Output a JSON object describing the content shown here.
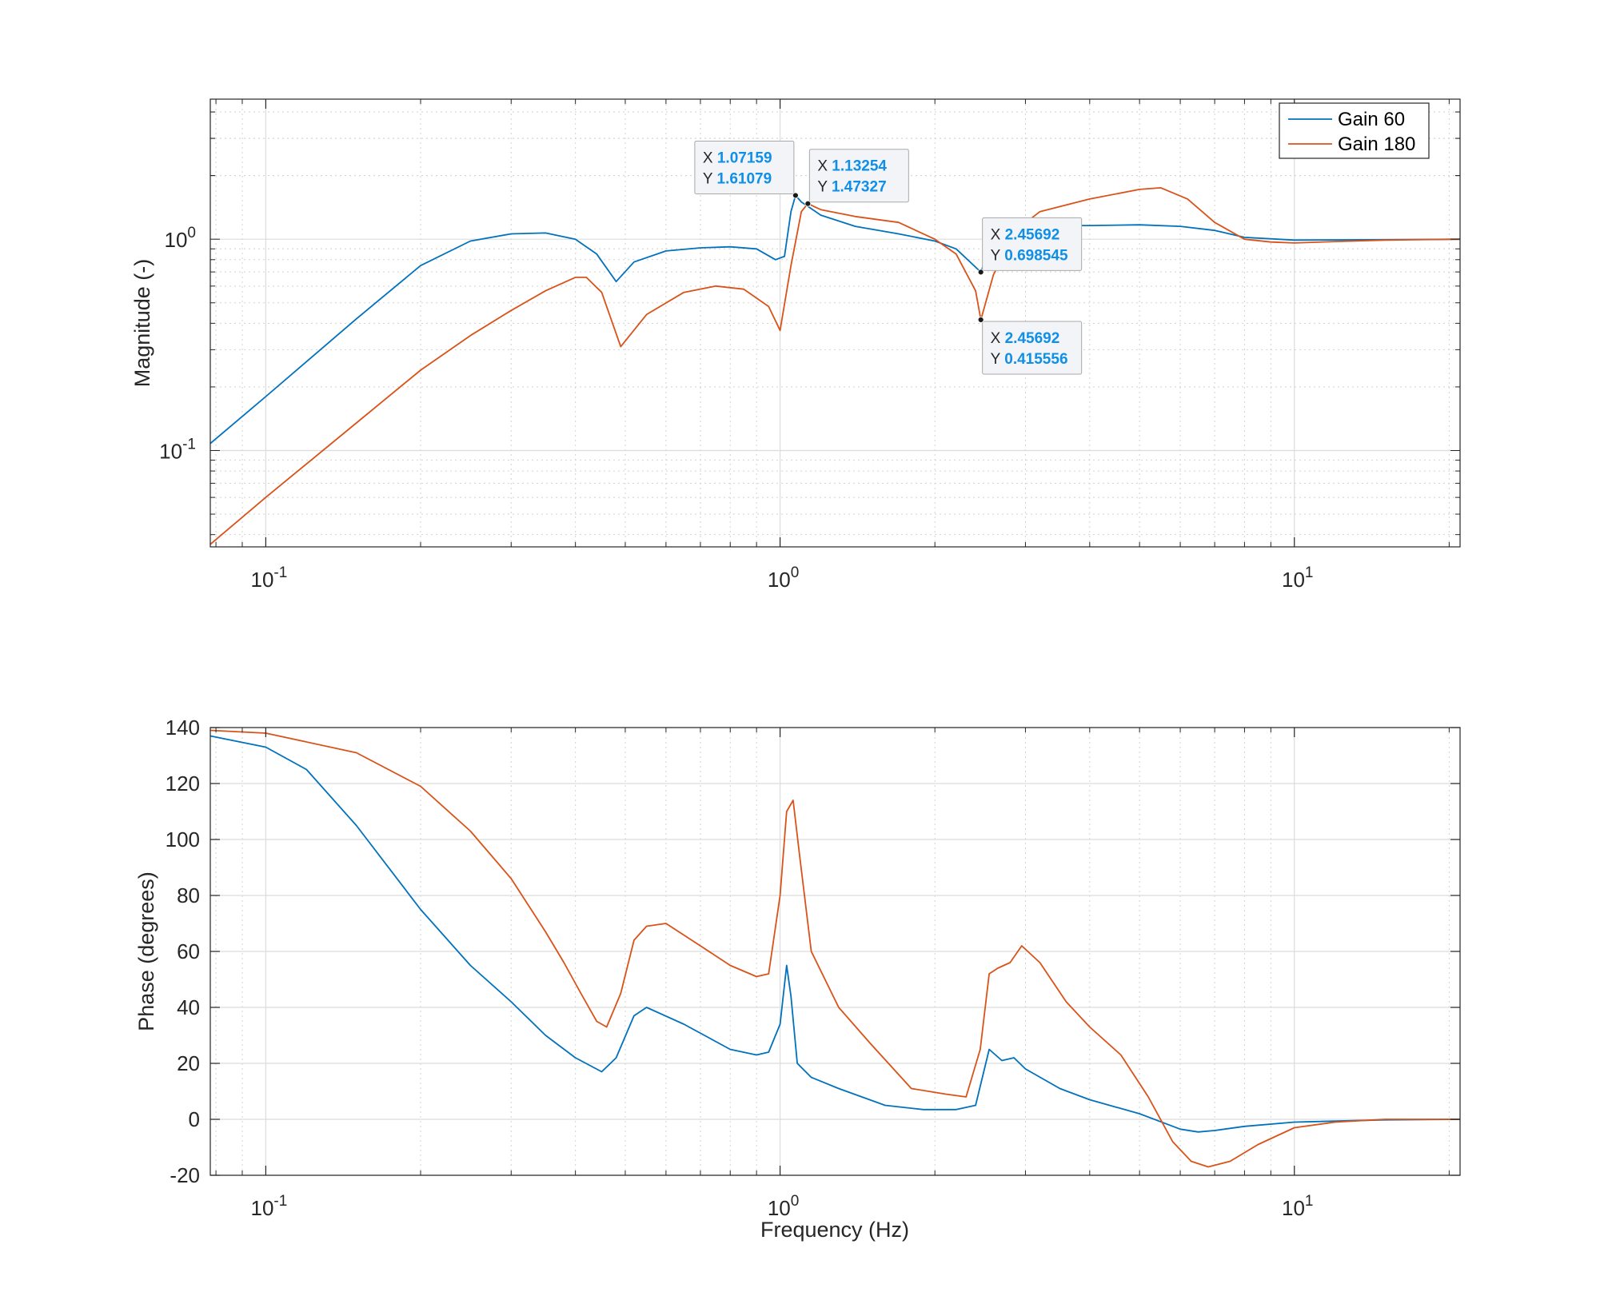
{
  "chart_data": [
    {
      "type": "line",
      "panel": "magnitude",
      "ylabel": "Magnitude (-)",
      "xlabel": "",
      "xscale": "log",
      "yscale": "log",
      "xlim": [
        0.078,
        21
      ],
      "ylim": [
        0.035,
        4.6
      ],
      "grid": true,
      "legend_position": "top-right",
      "x_tick_labels": [
        {
          "value": 0.1,
          "base": "10",
          "exp": "-1"
        },
        {
          "value": 1,
          "base": "10",
          "exp": "0"
        },
        {
          "value": 10,
          "base": "10",
          "exp": "1"
        }
      ],
      "y_tick_labels": [
        {
          "value": 0.1,
          "base": "10",
          "exp": "-1"
        },
        {
          "value": 1,
          "base": "10",
          "exp": "0"
        }
      ],
      "series": [
        {
          "name": "Gain 60",
          "color": "#0072bd",
          "x": [
            0.078,
            0.1,
            0.15,
            0.2,
            0.25,
            0.3,
            0.35,
            0.4,
            0.44,
            0.48,
            0.52,
            0.6,
            0.7,
            0.8,
            0.9,
            0.98,
            1.02,
            1.05,
            1.07159,
            1.1,
            1.2,
            1.4,
            1.7,
            2.0,
            2.2,
            2.45692,
            2.55,
            2.8,
            3.2,
            4.0,
            5.0,
            6.0,
            7.0,
            8.0,
            10.0,
            15.0,
            21.0
          ],
          "y": [
            0.108,
            0.18,
            0.42,
            0.75,
            0.98,
            1.06,
            1.07,
            1.0,
            0.85,
            0.63,
            0.78,
            0.88,
            0.91,
            0.92,
            0.9,
            0.8,
            0.83,
            1.35,
            1.61079,
            1.5,
            1.3,
            1.15,
            1.06,
            0.98,
            0.9,
            0.698545,
            0.9,
            1.12,
            1.16,
            1.16,
            1.17,
            1.15,
            1.1,
            1.02,
            0.99,
            0.995,
            1.0
          ]
        },
        {
          "name": "Gain 180",
          "color": "#d95319",
          "x": [
            0.078,
            0.1,
            0.15,
            0.2,
            0.25,
            0.3,
            0.35,
            0.4,
            0.42,
            0.45,
            0.49,
            0.55,
            0.65,
            0.75,
            0.85,
            0.95,
            1.0,
            1.05,
            1.1,
            1.13254,
            1.2,
            1.4,
            1.7,
            2.0,
            2.2,
            2.4,
            2.45692,
            2.6,
            2.9,
            3.2,
            4.0,
            5.0,
            5.5,
            6.2,
            7.0,
            8.0,
            9.0,
            10.0,
            12.0,
            15.0,
            21.0
          ],
          "y": [
            0.036,
            0.06,
            0.135,
            0.24,
            0.35,
            0.46,
            0.57,
            0.66,
            0.66,
            0.56,
            0.31,
            0.44,
            0.56,
            0.6,
            0.58,
            0.48,
            0.37,
            0.75,
            1.35,
            1.47327,
            1.38,
            1.28,
            1.2,
            1.0,
            0.85,
            0.57,
            0.415556,
            0.68,
            1.12,
            1.35,
            1.55,
            1.72,
            1.75,
            1.55,
            1.2,
            1.0,
            0.97,
            0.96,
            0.975,
            0.99,
            1.0
          ]
        }
      ],
      "datatips": [
        {
          "x_label": "X",
          "x_value": "1.07159",
          "y_label": "Y",
          "y_value": "1.61079",
          "x": 1.07159,
          "y": 1.61079,
          "placement": "above-left"
        },
        {
          "x_label": "X",
          "x_value": "1.13254",
          "y_label": "Y",
          "y_value": "1.47327",
          "x": 1.13254,
          "y": 1.47327,
          "placement": "above-right"
        },
        {
          "x_label": "X",
          "x_value": "2.45692",
          "y_label": "Y",
          "y_value": "0.698545",
          "x": 2.45692,
          "y": 0.698545,
          "placement": "above-right"
        },
        {
          "x_label": "X",
          "x_value": "2.45692",
          "y_label": "Y",
          "y_value": "0.415556",
          "x": 2.45692,
          "y": 0.415556,
          "placement": "below-right"
        }
      ]
    },
    {
      "type": "line",
      "panel": "phase",
      "ylabel": "Phase (degrees)",
      "xlabel": "Frequency (Hz)",
      "xscale": "log",
      "yscale": "linear",
      "xlim": [
        0.078,
        21
      ],
      "ylim": [
        -20,
        140
      ],
      "yticks": [
        -20,
        0,
        20,
        40,
        60,
        80,
        100,
        120,
        140
      ],
      "grid": true,
      "x_tick_labels": [
        {
          "value": 0.1,
          "base": "10",
          "exp": "-1"
        },
        {
          "value": 1,
          "base": "10",
          "exp": "0"
        },
        {
          "value": 10,
          "base": "10",
          "exp": "1"
        }
      ],
      "series": [
        {
          "name": "Gain 60",
          "color": "#0072bd",
          "x": [
            0.078,
            0.1,
            0.12,
            0.15,
            0.2,
            0.25,
            0.3,
            0.35,
            0.4,
            0.45,
            0.48,
            0.52,
            0.55,
            0.65,
            0.8,
            0.9,
            0.95,
            1.0,
            1.03,
            1.05,
            1.08,
            1.15,
            1.3,
            1.6,
            1.9,
            2.2,
            2.4,
            2.55,
            2.7,
            2.85,
            3.0,
            3.5,
            4.0,
            5.0,
            6.0,
            6.5,
            7.0,
            8.0,
            10.0,
            15.0,
            21.0
          ],
          "y": [
            137,
            133,
            125,
            105,
            75,
            55,
            42,
            30,
            22,
            17,
            22,
            37,
            40,
            34,
            25,
            23,
            24,
            34,
            55,
            44,
            20,
            15,
            11,
            5,
            3.5,
            3.5,
            5,
            25,
            21,
            22,
            18,
            11,
            7,
            2,
            -3.5,
            -4.5,
            -4,
            -2.5,
            -1,
            -0.2,
            0
          ]
        },
        {
          "name": "Gain 180",
          "color": "#d95319",
          "x": [
            0.078,
            0.1,
            0.15,
            0.2,
            0.25,
            0.3,
            0.35,
            0.38,
            0.41,
            0.44,
            0.46,
            0.49,
            0.52,
            0.55,
            0.6,
            0.7,
            0.8,
            0.9,
            0.95,
            1.0,
            1.03,
            1.06,
            1.09,
            1.15,
            1.3,
            1.5,
            1.8,
            2.1,
            2.3,
            2.45,
            2.55,
            2.65,
            2.8,
            2.95,
            3.2,
            3.6,
            4.0,
            4.6,
            5.2,
            5.8,
            6.3,
            6.8,
            7.5,
            8.5,
            10.0,
            12.0,
            15.0,
            21.0
          ],
          "y": [
            139,
            138,
            131,
            119,
            103,
            86,
            67,
            56,
            45,
            35,
            33,
            45,
            64,
            69,
            70,
            62,
            55,
            51,
            52,
            80,
            110,
            114,
            95,
            60,
            40,
            27,
            11,
            9,
            8,
            25,
            52,
            54,
            56,
            62,
            56,
            42,
            33,
            23,
            8,
            -8,
            -15,
            -17,
            -15,
            -9,
            -3,
            -1,
            0,
            0
          ]
        }
      ]
    }
  ],
  "legend": {
    "entries": [
      "Gain 60",
      "Gain 180"
    ]
  }
}
